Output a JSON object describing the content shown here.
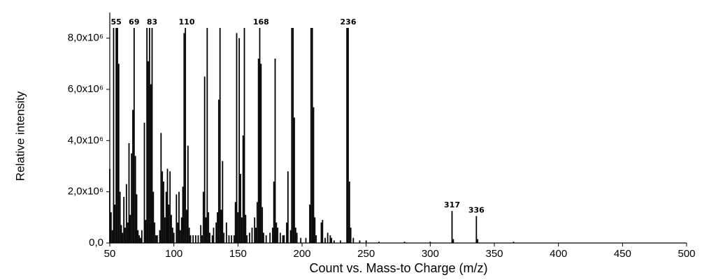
{
  "chart_data": {
    "type": "stem",
    "x_label": "Count vs. Mass-to Charge (m/z)",
    "y_label": "Relative intensity",
    "color": "#000000",
    "x": [
      50,
      51,
      52,
      53,
      54,
      55,
      56,
      57,
      58,
      59,
      60,
      61,
      62,
      63,
      64,
      65,
      66,
      67,
      68,
      69,
      70,
      71,
      72,
      73,
      74,
      75,
      77,
      78,
      79,
      80,
      81,
      82,
      83,
      84,
      85,
      86,
      87,
      89,
      90,
      91,
      92,
      93,
      94,
      95,
      96,
      97,
      98,
      99,
      100,
      102,
      103,
      104,
      105,
      106,
      107,
      108,
      109,
      110,
      111,
      112,
      113,
      115,
      117,
      119,
      121,
      122,
      123,
      124,
      125,
      126,
      127,
      128,
      130,
      131,
      133,
      134,
      135,
      136,
      137,
      138,
      139,
      141,
      143,
      145,
      147,
      148,
      149,
      150,
      151,
      152,
      153,
      154,
      155,
      156,
      157,
      159,
      161,
      163,
      164,
      165,
      166,
      167,
      168,
      169,
      170,
      172,
      175,
      177,
      178,
      179,
      180,
      181,
      183,
      185,
      186,
      188,
      189,
      191,
      192,
      193,
      194,
      195,
      196,
      199,
      203,
      206,
      207,
      208,
      209,
      210,
      211,
      215,
      216,
      218,
      220,
      222,
      223,
      225,
      230,
      235,
      236,
      237,
      238,
      240,
      245,
      250,
      260,
      280,
      300,
      317,
      318,
      336,
      337,
      365
    ],
    "values": [
      2900000,
      1200000,
      500000,
      8400000,
      1500000,
      8400000,
      8400000,
      7000000,
      2000000,
      700000,
      400000,
      1800000,
      600000,
      2300000,
      800000,
      3900000,
      1100000,
      3500000,
      5200000,
      8400000,
      3400000,
      1900000,
      500000,
      300000,
      200000,
      500000,
      4700000,
      900000,
      8400000,
      7100000,
      8400000,
      6200000,
      8400000,
      2000000,
      800000,
      300000,
      300000,
      500000,
      4300000,
      2800000,
      2400000,
      1000000,
      2000000,
      2900000,
      1500000,
      2800000,
      1100000,
      600000,
      400000,
      1900000,
      800000,
      2000000,
      500000,
      1000000,
      2200000,
      8200000,
      8400000,
      1300000,
      3800000,
      600000,
      300000,
      300000,
      300000,
      300000,
      700000,
      300000,
      2000000,
      6500000,
      1000000,
      8400000,
      1200000,
      400000,
      300000,
      600000,
      800000,
      1200000,
      5600000,
      8400000,
      1300000,
      3200000,
      400000,
      800000,
      300000,
      300000,
      300000,
      1600000,
      8200000,
      1200000,
      8000000,
      2700000,
      1000000,
      4200000,
      8400000,
      1100000,
      300000,
      400000,
      600000,
      1000000,
      600000,
      1600000,
      7200000,
      8400000,
      7000000,
      1400000,
      400000,
      300000,
      400000,
      600000,
      2400000,
      7200000,
      800000,
      600000,
      400000,
      300000,
      300000,
      800000,
      2800000,
      500000,
      8400000,
      8400000,
      4900000,
      600000,
      400000,
      200000,
      200000,
      1500000,
      8400000,
      8400000,
      5300000,
      1000000,
      300000,
      800000,
      900000,
      200000,
      400000,
      300000,
      200000,
      100000,
      100000,
      8400000,
      8400000,
      2400000,
      600000,
      200000,
      100000,
      100000,
      50000,
      50000,
      50000,
      1250000,
      150000,
      1050000,
      150000,
      50000
    ],
    "labeled_peaks": [
      55,
      69,
      83,
      110,
      168,
      236,
      317,
      336
    ],
    "xlim": [
      50,
      500
    ],
    "xticks": [
      50,
      100,
      150,
      200,
      250,
      300,
      350,
      400,
      450,
      500
    ],
    "ylim": [
      0,
      9000000
    ],
    "yticks": [
      {
        "value": 0,
        "label": "0,0"
      },
      {
        "value": 2000000,
        "label": "2,0x10⁶"
      },
      {
        "value": 4000000,
        "label": "4,0x10⁶"
      },
      {
        "value": 6000000,
        "label": "6,0x10⁶"
      },
      {
        "value": 8000000,
        "label": "8,0x10⁶"
      }
    ]
  }
}
